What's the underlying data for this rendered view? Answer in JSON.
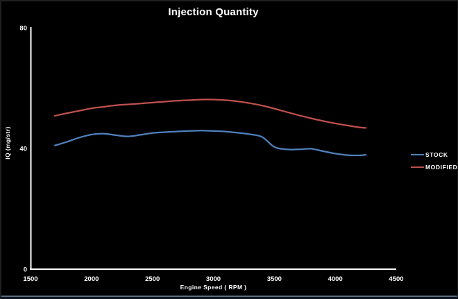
{
  "window": {
    "background": "#000000",
    "bottom_edge_color": "#5a6e82"
  },
  "chart_data": {
    "type": "line",
    "title": "Injection Quantity",
    "xlabel": "Engine Speed ( RPM )",
    "ylabel": "IQ (mg/str)",
    "xlim": [
      1500,
      4500
    ],
    "ylim": [
      0,
      80
    ],
    "x_ticks": [
      1500,
      2000,
      2500,
      3000,
      3500,
      4000,
      4500
    ],
    "y_ticks": [
      0,
      40,
      80
    ],
    "grid": false,
    "legend_position": "right",
    "plot_background": "#000000",
    "axis_color": "#ffffff",
    "text_color": "#ffffff",
    "x": [
      1700,
      1800,
      1900,
      2000,
      2100,
      2200,
      2300,
      2400,
      2500,
      2600,
      2700,
      2800,
      2900,
      3000,
      3100,
      3200,
      3300,
      3400,
      3500,
      3600,
      3700,
      3800,
      3900,
      4000,
      4100,
      4200,
      4250
    ],
    "series": [
      {
        "name": "STOCK",
        "color": "#4F81BD",
        "values": [
          41.0,
          42.2,
          43.6,
          44.6,
          44.9,
          44.4,
          44.0,
          44.5,
          45.1,
          45.4,
          45.6,
          45.8,
          45.9,
          45.8,
          45.6,
          45.2,
          44.7,
          43.8,
          40.5,
          39.7,
          39.7,
          39.9,
          39.1,
          38.3,
          37.8,
          37.7,
          37.9
        ]
      },
      {
        "name": "MODIFIED",
        "color": "#C0504D",
        "values": [
          50.8,
          51.7,
          52.5,
          53.3,
          53.8,
          54.3,
          54.6,
          54.9,
          55.2,
          55.5,
          55.8,
          56.0,
          56.2,
          56.2,
          56.0,
          55.6,
          55.0,
          54.2,
          53.2,
          52.1,
          51.0,
          50.0,
          49.1,
          48.3,
          47.6,
          47.0,
          46.8
        ]
      }
    ]
  }
}
